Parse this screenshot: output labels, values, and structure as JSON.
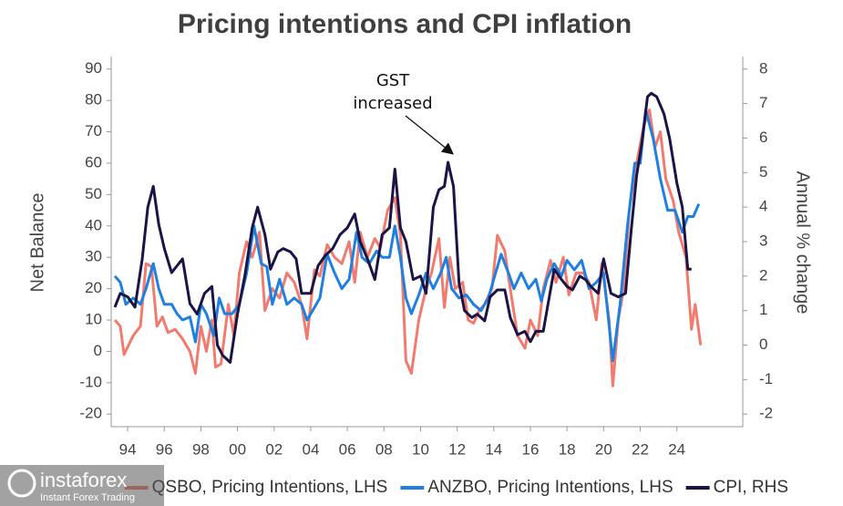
{
  "chart_data": {
    "type": "line",
    "title": "Pricing intentions and CPI inflation",
    "y_label": "Net Balance",
    "y2_label": "Annual % change",
    "annotation": [
      "GST",
      "increased"
    ],
    "watermark": [
      "instaforex",
      "Instant Forex Trading"
    ],
    "xlim": [
      1993.1,
      2027.6
    ],
    "xticks": [
      {
        "value": 1994,
        "label": "94"
      },
      {
        "value": 1996,
        "label": "96"
      },
      {
        "value": 1998,
        "label": "98"
      },
      {
        "value": 2000,
        "label": "00"
      },
      {
        "value": 2002,
        "label": "02"
      },
      {
        "value": 2004,
        "label": "04"
      },
      {
        "value": 2006,
        "label": "06"
      },
      {
        "value": 2008,
        "label": "08"
      },
      {
        "value": 2010,
        "label": "10"
      },
      {
        "value": 2012,
        "label": "12"
      },
      {
        "value": 2014,
        "label": "14"
      },
      {
        "value": 2016,
        "label": "16"
      },
      {
        "value": 2018,
        "label": "18"
      },
      {
        "value": 2020,
        "label": "20"
      },
      {
        "value": 2022,
        "label": "22"
      },
      {
        "value": 2024,
        "label": "24"
      }
    ],
    "ylim": [
      -24,
      94
    ],
    "yticks": [
      -20,
      -10,
      0,
      10,
      20,
      30,
      40,
      50,
      60,
      70,
      80,
      90
    ],
    "y2lim": [
      -2.364,
      8.364
    ],
    "y2ticks": [
      -2,
      -1,
      0,
      1,
      2,
      3,
      4,
      5,
      6,
      7,
      8
    ],
    "legend": "bottom",
    "grid": false,
    "series": [
      {
        "name": "QSBO, Pricing Intentions, LHS",
        "color": "#f07b6e",
        "x": [
          1993.3,
          1993.6,
          1993.8,
          1994.3,
          1994.7,
          1995.0,
          1995.3,
          1995.6,
          1995.9,
          1996.2,
          1996.6,
          1997.0,
          1997.4,
          1997.7,
          1998.0,
          1998.3,
          1998.6,
          1998.8,
          1999.1,
          1999.5,
          1999.8,
          2000.1,
          2000.5,
          2000.8,
          2001.2,
          2001.5,
          2001.9,
          2002.3,
          2002.7,
          2003.1,
          2003.5,
          2003.8,
          2004.2,
          2004.5,
          2004.9,
          2005.3,
          2005.7,
          2006.1,
          2006.4,
          2006.7,
          2007.1,
          2007.5,
          2007.8,
          2008.2,
          2008.6,
          2008.9,
          2009.2,
          2009.5,
          2009.9,
          2010.3,
          2010.6,
          2011.0,
          2011.3,
          2011.6,
          2011.9,
          2012.3,
          2012.6,
          2012.9,
          2013.2,
          2013.5,
          2013.9,
          2014.2,
          2014.6,
          2014.9,
          2015.3,
          2015.7,
          2016.0,
          2016.4,
          2016.7,
          2017.1,
          2017.4,
          2017.8,
          2018.1,
          2018.5,
          2018.9,
          2019.2,
          2019.6,
          2019.9,
          2020.3,
          2020.5,
          2020.8,
          2021.1,
          2021.4,
          2021.8,
          2022.2,
          2022.5,
          2022.8,
          2023.1,
          2023.4,
          2023.8,
          2024.1,
          2024.5,
          2024.8,
          2025.0,
          2025.3
        ],
        "values": [
          10,
          8,
          -1,
          5,
          8,
          28,
          27,
          8,
          11,
          6,
          7,
          4,
          0,
          -7,
          8,
          0,
          10,
          -5,
          -4,
          15,
          5,
          25,
          35,
          30,
          38,
          13,
          20,
          17,
          25,
          22,
          15,
          4,
          26,
          24,
          34,
          30,
          28,
          35,
          22,
          38,
          30,
          36,
          33,
          45,
          49,
          37,
          -3,
          -7,
          10,
          20,
          25,
          36,
          14,
          30,
          20,
          22,
          10,
          9,
          13,
          15,
          20,
          37,
          32,
          20,
          5,
          1,
          10,
          5,
          20,
          29,
          22,
          30,
          18,
          25,
          25,
          22,
          10,
          28,
          10,
          -11,
          10,
          20,
          45,
          60,
          72,
          77,
          65,
          70,
          55,
          48,
          38,
          30,
          7,
          15,
          2
        ]
      },
      {
        "name": "ANZBO, Pricing Intentions, LHS",
        "color": "#1f80e0",
        "x": [
          1993.3,
          1993.6,
          1993.9,
          1994.3,
          1994.7,
          1995.0,
          1995.4,
          1995.7,
          1996.0,
          1996.4,
          1996.7,
          1997.0,
          1997.4,
          1997.7,
          1998.0,
          1998.3,
          1998.7,
          1999.0,
          1999.3,
          1999.7,
          2000.1,
          2000.5,
          2000.9,
          2001.3,
          2001.6,
          2001.9,
          2002.3,
          2002.7,
          2003.1,
          2003.5,
          2003.8,
          2004.2,
          2004.5,
          2004.9,
          2005.3,
          2005.7,
          2006.1,
          2006.5,
          2006.8,
          2007.2,
          2007.6,
          2007.9,
          2008.3,
          2008.6,
          2008.9,
          2009.2,
          2009.5,
          2009.9,
          2010.3,
          2010.7,
          2011.1,
          2011.4,
          2011.7,
          2012.1,
          2012.5,
          2012.9,
          2013.3,
          2013.7,
          2014.1,
          2014.4,
          2014.8,
          2015.1,
          2015.5,
          2015.9,
          2016.3,
          2016.6,
          2016.9,
          2017.3,
          2017.7,
          2018.0,
          2018.4,
          2018.8,
          2019.2,
          2019.6,
          2020.0,
          2020.5,
          2020.9,
          2021.3,
          2021.7,
          2022.0,
          2022.3,
          2022.7,
          2023.1,
          2023.5,
          2023.9,
          2024.3,
          2024.6,
          2024.9,
          2025.2
        ],
        "values": [
          24,
          22,
          15,
          17,
          15,
          20,
          28,
          20,
          15,
          15,
          12,
          10,
          11,
          3,
          15,
          12,
          5,
          17,
          12,
          12,
          15,
          25,
          40,
          28,
          27,
          15,
          23,
          15,
          17,
          15,
          10,
          14,
          17,
          31,
          25,
          20,
          23,
          38,
          30,
          28,
          32,
          30,
          30,
          40,
          30,
          17,
          12,
          18,
          25,
          20,
          25,
          30,
          20,
          17,
          18,
          15,
          13,
          17,
          25,
          31,
          25,
          20,
          25,
          20,
          23,
          16,
          23,
          28,
          24,
          29,
          26,
          29,
          20,
          22,
          25,
          -3,
          15,
          40,
          60,
          60,
          77,
          68,
          55,
          45,
          45,
          38,
          43,
          43,
          47
        ]
      },
      {
        "name": "CPI, RHS",
        "color": "#1b1445",
        "axis": "y2",
        "x": [
          1993.3,
          1993.6,
          1994.0,
          1994.4,
          1994.8,
          1995.1,
          1995.4,
          1995.7,
          1996.0,
          1996.4,
          1996.7,
          1997.0,
          1997.4,
          1997.8,
          1998.2,
          1998.6,
          1998.9,
          1999.2,
          1999.6,
          2000.0,
          2000.4,
          2000.8,
          2001.1,
          2001.5,
          2001.8,
          2002.2,
          2002.5,
          2002.9,
          2003.2,
          2003.5,
          2004.0,
          2004.4,
          2004.8,
          2005.2,
          2005.6,
          2006.0,
          2006.4,
          2006.7,
          2007.1,
          2007.5,
          2007.9,
          2008.3,
          2008.6,
          2008.9,
          2009.2,
          2009.6,
          2010.0,
          2010.3,
          2010.7,
          2011.0,
          2011.3,
          2011.5,
          2011.8,
          2012.1,
          2012.4,
          2012.8,
          2013.1,
          2013.5,
          2013.8,
          2014.2,
          2014.6,
          2014.9,
          2015.3,
          2015.7,
          2016.0,
          2016.3,
          2016.7,
          2017.0,
          2017.3,
          2017.7,
          2018.0,
          2018.3,
          2018.7,
          2019.0,
          2019.3,
          2019.7,
          2020.0,
          2020.4,
          2020.8,
          2021.2,
          2021.5,
          2021.8,
          2022.1,
          2022.4,
          2022.6,
          2022.9,
          2023.3,
          2023.6,
          2024.0,
          2024.3,
          2024.6,
          2024.8
        ],
        "values": [
          1.1,
          1.5,
          1.4,
          1.1,
          2.5,
          4.0,
          4.6,
          3.5,
          2.8,
          2.1,
          2.3,
          2.5,
          1.2,
          0.9,
          1.5,
          1.7,
          0.0,
          -0.3,
          -0.5,
          0.9,
          2.0,
          3.4,
          4.0,
          3.2,
          2.2,
          2.7,
          2.8,
          2.7,
          2.5,
          1.5,
          1.5,
          2.3,
          2.6,
          2.8,
          3.2,
          3.4,
          3.8,
          3.0,
          2.5,
          1.9,
          3.2,
          3.4,
          5.1,
          3.4,
          3.0,
          1.9,
          2.0,
          1.5,
          4.0,
          4.5,
          4.6,
          5.3,
          4.6,
          1.8,
          1.0,
          0.8,
          0.9,
          0.7,
          1.4,
          1.6,
          1.6,
          0.8,
          0.3,
          0.4,
          0.1,
          0.4,
          0.4,
          1.3,
          2.2,
          1.9,
          1.7,
          1.6,
          2.0,
          1.9,
          1.7,
          1.5,
          2.5,
          1.5,
          1.4,
          1.5,
          3.3,
          4.9,
          5.9,
          7.2,
          7.3,
          7.2,
          6.7,
          6.0,
          4.7,
          4.0,
          2.2,
          2.2
        ]
      }
    ]
  }
}
